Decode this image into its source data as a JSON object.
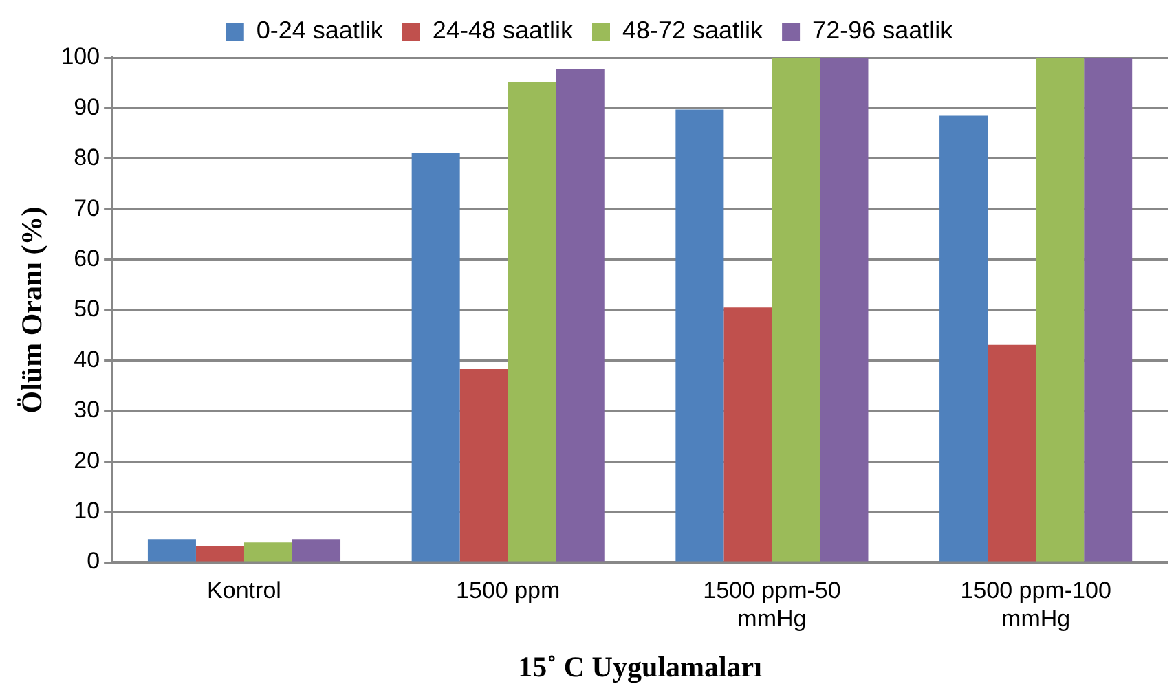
{
  "chart_data": {
    "type": "bar",
    "xlabel": "15˚ C Uygulamaları",
    "ylabel": "Ölüm Oranı (%)",
    "categories": [
      "Kontrol",
      "1500 ppm",
      "1500 ppm-50 mmHg",
      "1500 ppm-100 mmHg"
    ],
    "series": [
      {
        "name": "0-24 saatlik",
        "color": "#4f81bd",
        "values": [
          4.6,
          81.1,
          89.7,
          88.5
        ]
      },
      {
        "name": "24-48 saatlik",
        "color": "#c0504d",
        "values": [
          3.2,
          38.3,
          50.5,
          43.1
        ]
      },
      {
        "name": "48-72 saatlik",
        "color": "#9bbb59",
        "values": [
          3.9,
          95.1,
          100,
          100
        ]
      },
      {
        "name": "72-96 saatlik",
        "color": "#8064a2",
        "values": [
          4.6,
          97.8,
          100,
          100
        ]
      }
    ],
    "ylim": [
      0,
      100
    ],
    "yticks": [
      0,
      10,
      20,
      30,
      40,
      50,
      60,
      70,
      80,
      90,
      100
    ],
    "grid": "y",
    "legend": "top"
  }
}
